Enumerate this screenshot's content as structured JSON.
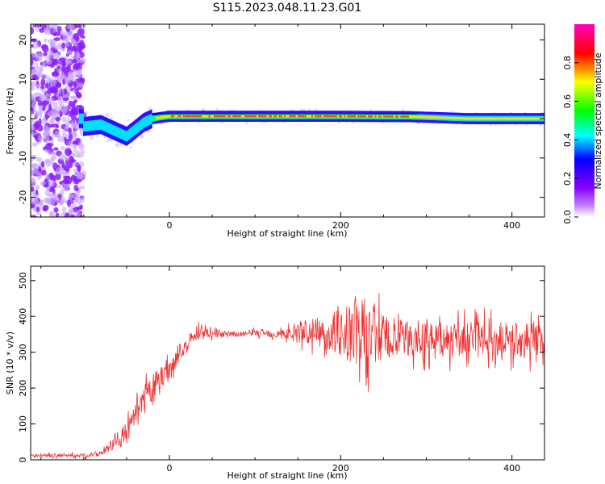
{
  "figure_title": "S115.2023.048.11.23.G01",
  "chart_data": [
    {
      "type": "heatmap",
      "xlabel": "Height of straight line (km)",
      "ylabel": "Frequency (Hz)",
      "xlim": [
        -162,
        438
      ],
      "ylim": [
        -25,
        24
      ],
      "xticks": [
        0,
        200,
        400
      ],
      "xtick_labels": [
        "0",
        "200",
        "400"
      ],
      "yticks": [
        -20,
        -10,
        0,
        10,
        20
      ],
      "ytick_labels": [
        "-20",
        "-10",
        "0",
        "10",
        "20"
      ],
      "colorbar": {
        "label": "Normalized spectral amplitude",
        "range": [
          0,
          1
        ],
        "ticks": [
          0.0,
          0.2,
          0.4,
          0.6,
          0.8
        ],
        "tick_labels": [
          "0.0",
          "0.2",
          "0.4",
          "0.6",
          "0.8"
        ],
        "colormap": [
          "#ffffff",
          "#8a00ff",
          "#0000ff",
          "#00ffff",
          "#00ff00",
          "#ffff00",
          "#ff0000",
          "#ff00ff"
        ]
      },
      "ridge": [
        {
          "x": -100,
          "freq": -2.0
        },
        {
          "x": -80,
          "freq": -1.5
        },
        {
          "x": -60,
          "freq": -3.5
        },
        {
          "x": -50,
          "freq": -4.5
        },
        {
          "x": -30,
          "freq": -1.0
        },
        {
          "x": -20,
          "freq": 0.0
        },
        {
          "x": 0,
          "freq": 0.6
        },
        {
          "x": 100,
          "freq": 0.6
        },
        {
          "x": 200,
          "freq": 0.6
        },
        {
          "x": 280,
          "freq": 0.5
        },
        {
          "x": 350,
          "freq": 0.0
        },
        {
          "x": 438,
          "freq": 0.0
        }
      ],
      "grid": false
    },
    {
      "type": "line",
      "xlabel": "Height of straight line (km)",
      "ylabel": "SNR (10 * v/v)",
      "xlim": [
        -162,
        438
      ],
      "ylim": [
        0,
        540
      ],
      "xticks": [
        0,
        200,
        400
      ],
      "xtick_labels": [
        "0",
        "200",
        "400"
      ],
      "yticks": [
        0,
        100,
        200,
        300,
        400,
        500
      ],
      "ytick_labels": [
        "0",
        "100",
        "200",
        "300",
        "400",
        "500"
      ],
      "line_color": "#f03030",
      "series": [
        {
          "x": [
            -162,
            -140,
            -120,
            -100,
            -90,
            -80,
            -70,
            -60,
            -50,
            -45,
            -40,
            -35,
            -30,
            -25,
            -20,
            -15,
            -10,
            -5,
            0,
            5,
            10,
            15,
            20,
            25,
            30,
            35,
            40,
            45,
            50,
            60,
            70,
            80,
            90,
            100,
            110,
            120,
            130,
            140,
            150,
            160,
            170,
            180,
            190,
            200,
            210,
            220,
            230,
            240,
            250,
            260,
            270,
            280,
            290,
            300,
            310,
            320,
            330,
            340,
            350,
            360,
            370,
            380,
            390,
            400,
            410,
            420,
            430,
            438
          ],
          "y": [
            12,
            12,
            12,
            12,
            14,
            20,
            35,
            55,
            75,
            95,
            120,
            140,
            165,
            185,
            200,
            215,
            230,
            245,
            255,
            270,
            290,
            300,
            320,
            340,
            350,
            355,
            360,
            355,
            350,
            350,
            350,
            350,
            352,
            355,
            355,
            352,
            350,
            352,
            355,
            358,
            355,
            355,
            355,
            355,
            355,
            355,
            350,
            345,
            340,
            338,
            335,
            335,
            335,
            335,
            335,
            335,
            335,
            335,
            335,
            335,
            335,
            335,
            335,
            335,
            335,
            335,
            335,
            335
          ],
          "spread": [
            5,
            5,
            5,
            6,
            6,
            8,
            15,
            22,
            30,
            32,
            35,
            38,
            40,
            40,
            38,
            35,
            32,
            30,
            28,
            25,
            22,
            18,
            16,
            14,
            22,
            30,
            28,
            14,
            12,
            10,
            8,
            8,
            8,
            10,
            10,
            12,
            15,
            20,
            30,
            35,
            40,
            45,
            55,
            70,
            90,
            110,
            100,
            90,
            70,
            60,
            55,
            50,
            50,
            50,
            48,
            48,
            50,
            50,
            50,
            50,
            50,
            50,
            48,
            50,
            50,
            50,
            45,
            45
          ]
        }
      ],
      "grid": false
    }
  ]
}
